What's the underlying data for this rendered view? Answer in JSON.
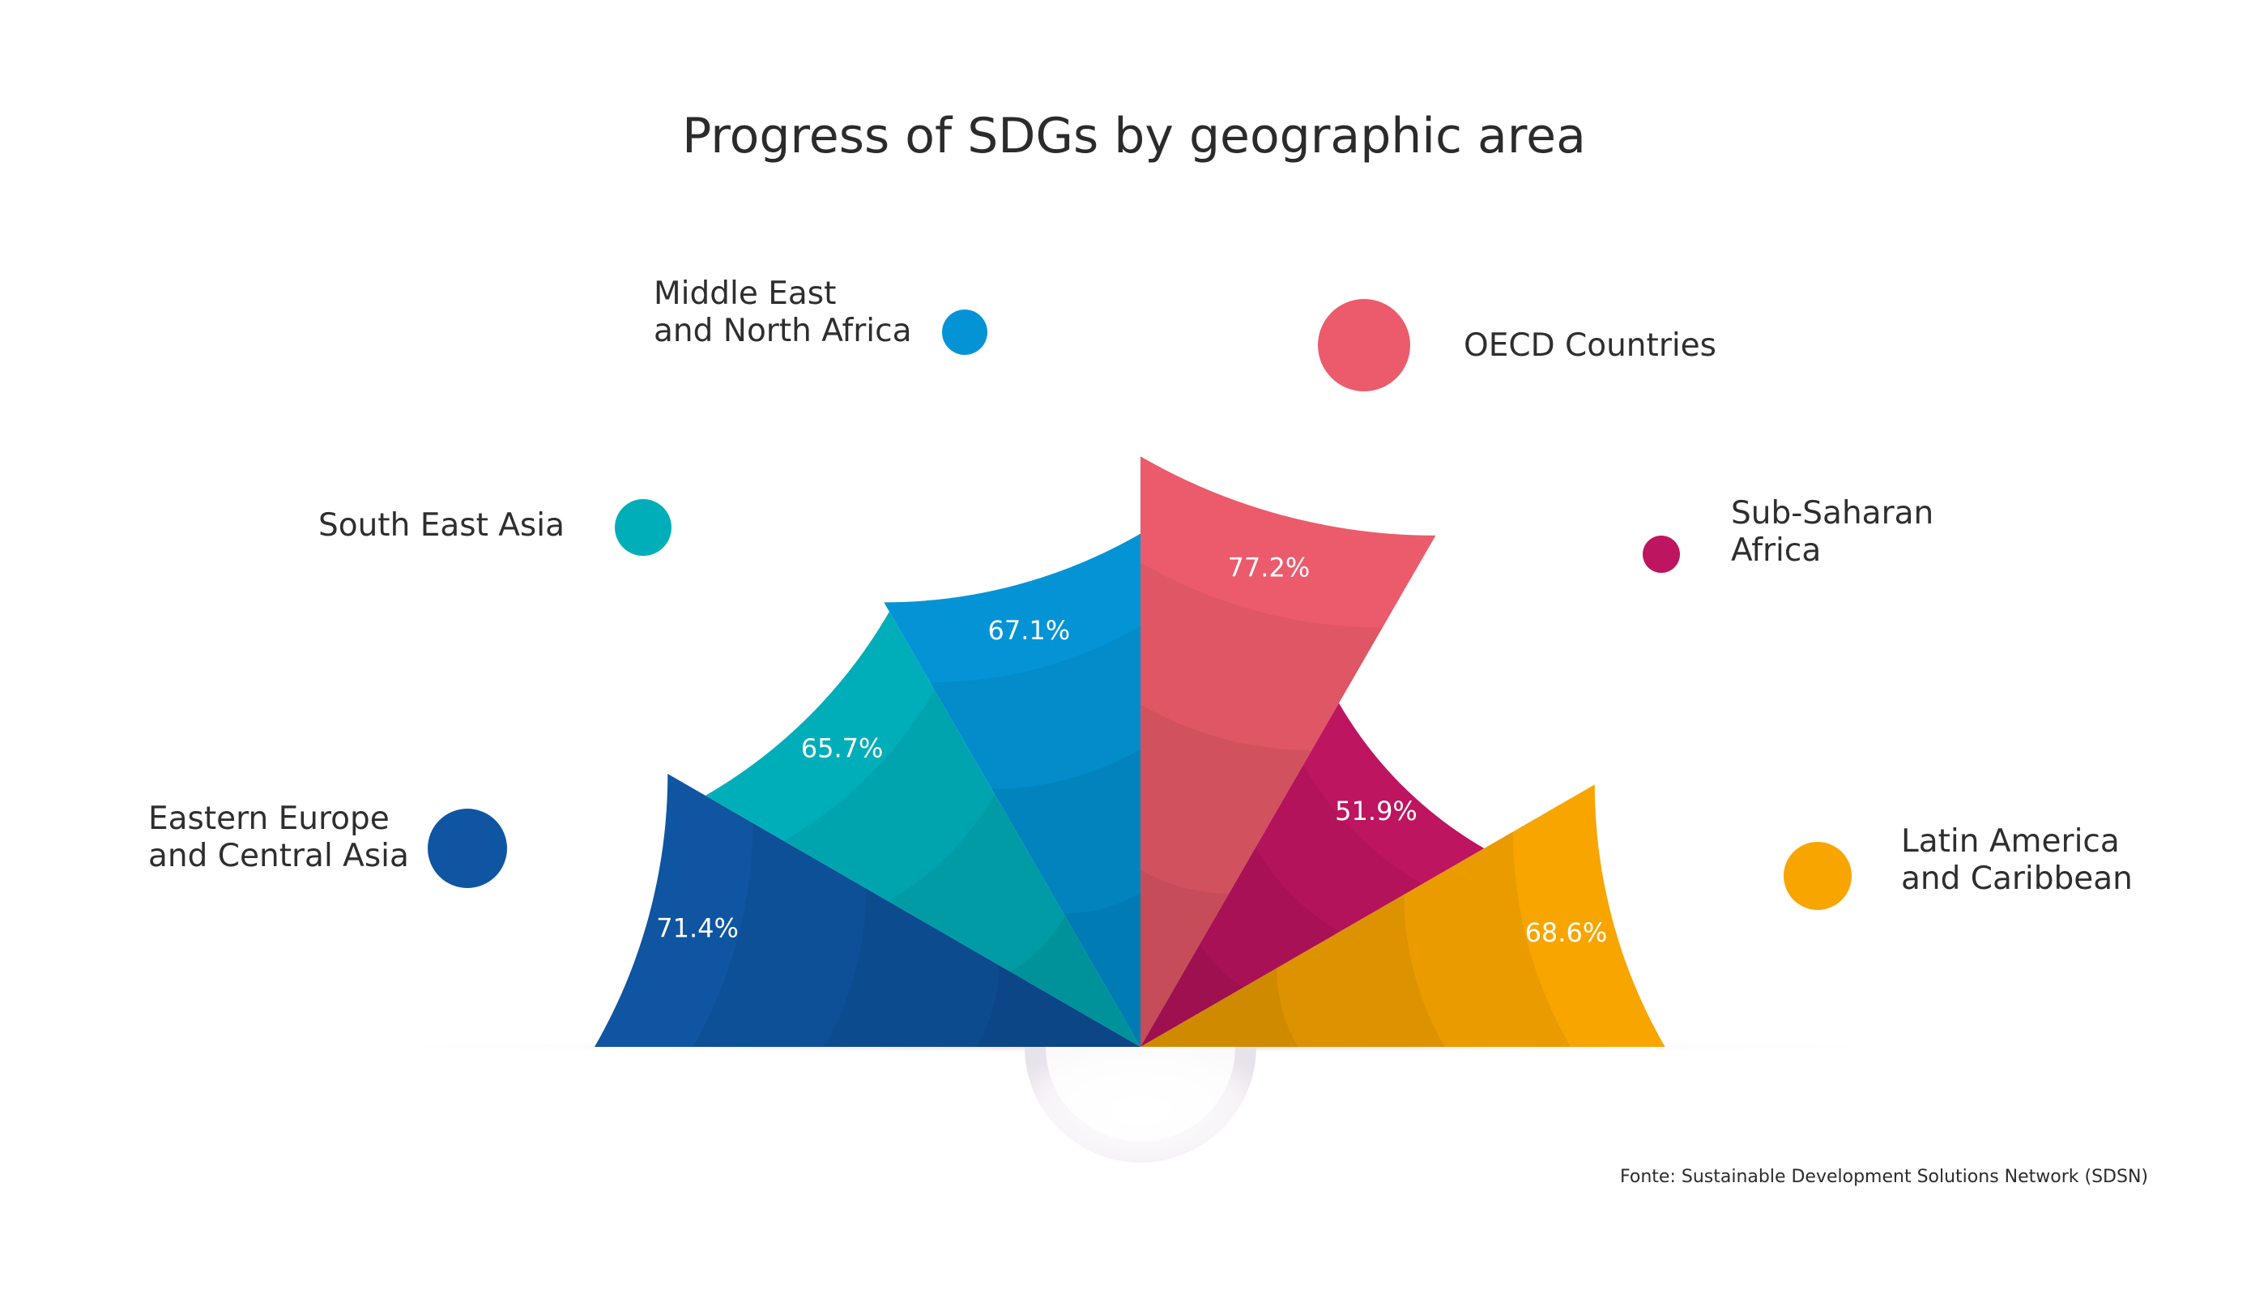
{
  "chart_data": {
    "type": "polar-area",
    "title": "Progress of SDGs by geographic area",
    "unit": "%",
    "series": [
      {
        "name": "Eastern Europe and Central Asia",
        "label_lines": [
          "Eastern Europe",
          "and Central Asia"
        ],
        "value": 71.4,
        "value_label": "71.4%",
        "color": "#0f55a1"
      },
      {
        "name": "South East Asia",
        "label_lines": [
          "South East Asia"
        ],
        "value": 65.7,
        "value_label": "65.7%",
        "color": "#00aeba"
      },
      {
        "name": "Middle East and North Africa",
        "label_lines": [
          "Middle East",
          "and North Africa"
        ],
        "value": 67.1,
        "value_label": "67.1%",
        "color": "#0494d6"
      },
      {
        "name": "OECD Countries",
        "label_lines": [
          "OECD Countries"
        ],
        "value": 77.2,
        "value_label": "77.2%",
        "color": "#ec5b6b"
      },
      {
        "name": "Sub-Saharan Africa",
        "label_lines": [
          "Sub-Saharan",
          "Africa"
        ],
        "value": 51.9,
        "value_label": "51.9%",
        "color": "#bd1560"
      },
      {
        "name": "Latin America and Caribbean",
        "label_lines": [
          "Latin America",
          "and Caribbean"
        ],
        "value": 68.6,
        "value_label": "68.6%",
        "color": "#f8a500"
      }
    ]
  },
  "source": "Fonte: Sustainable Development Solutions Network (SDSN)"
}
